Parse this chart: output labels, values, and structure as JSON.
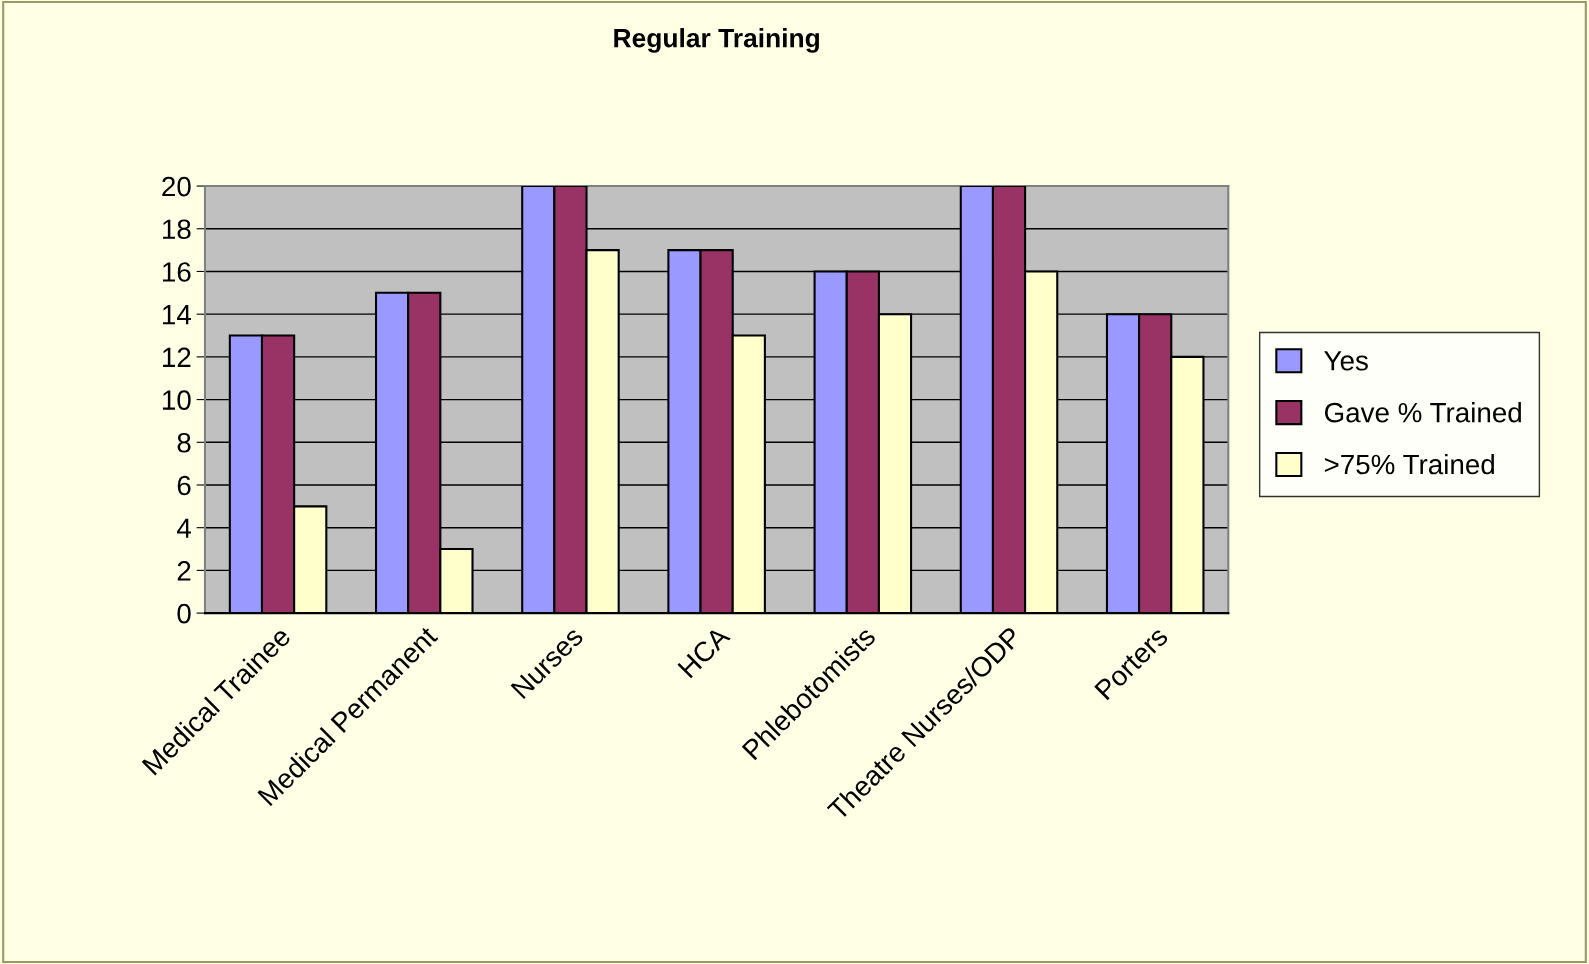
{
  "chart_data": {
    "type": "bar",
    "title": "Regular Training",
    "categories": [
      "Medical Trainee",
      "Medical Permanent",
      "Nurses",
      "HCA",
      "Phlebotomists",
      "Theatre Nurses/ODP",
      "Porters"
    ],
    "series": [
      {
        "name": "Yes",
        "color": "#9999ff",
        "values": [
          13,
          15,
          20,
          17,
          16,
          20,
          14
        ]
      },
      {
        "name": "Gave % Trained",
        "color": "#993366",
        "values": [
          13,
          15,
          20,
          17,
          16,
          20,
          14
        ]
      },
      {
        "name": ">75% Trained",
        "color": "#ffffcc",
        "values": [
          5,
          3,
          17,
          13,
          14,
          16,
          12
        ]
      }
    ],
    "ylim": [
      0,
      20
    ],
    "yticks": [
      0,
      2,
      4,
      6,
      8,
      10,
      12,
      14,
      16,
      18,
      20
    ],
    "grid": "y",
    "legend": "right"
  }
}
